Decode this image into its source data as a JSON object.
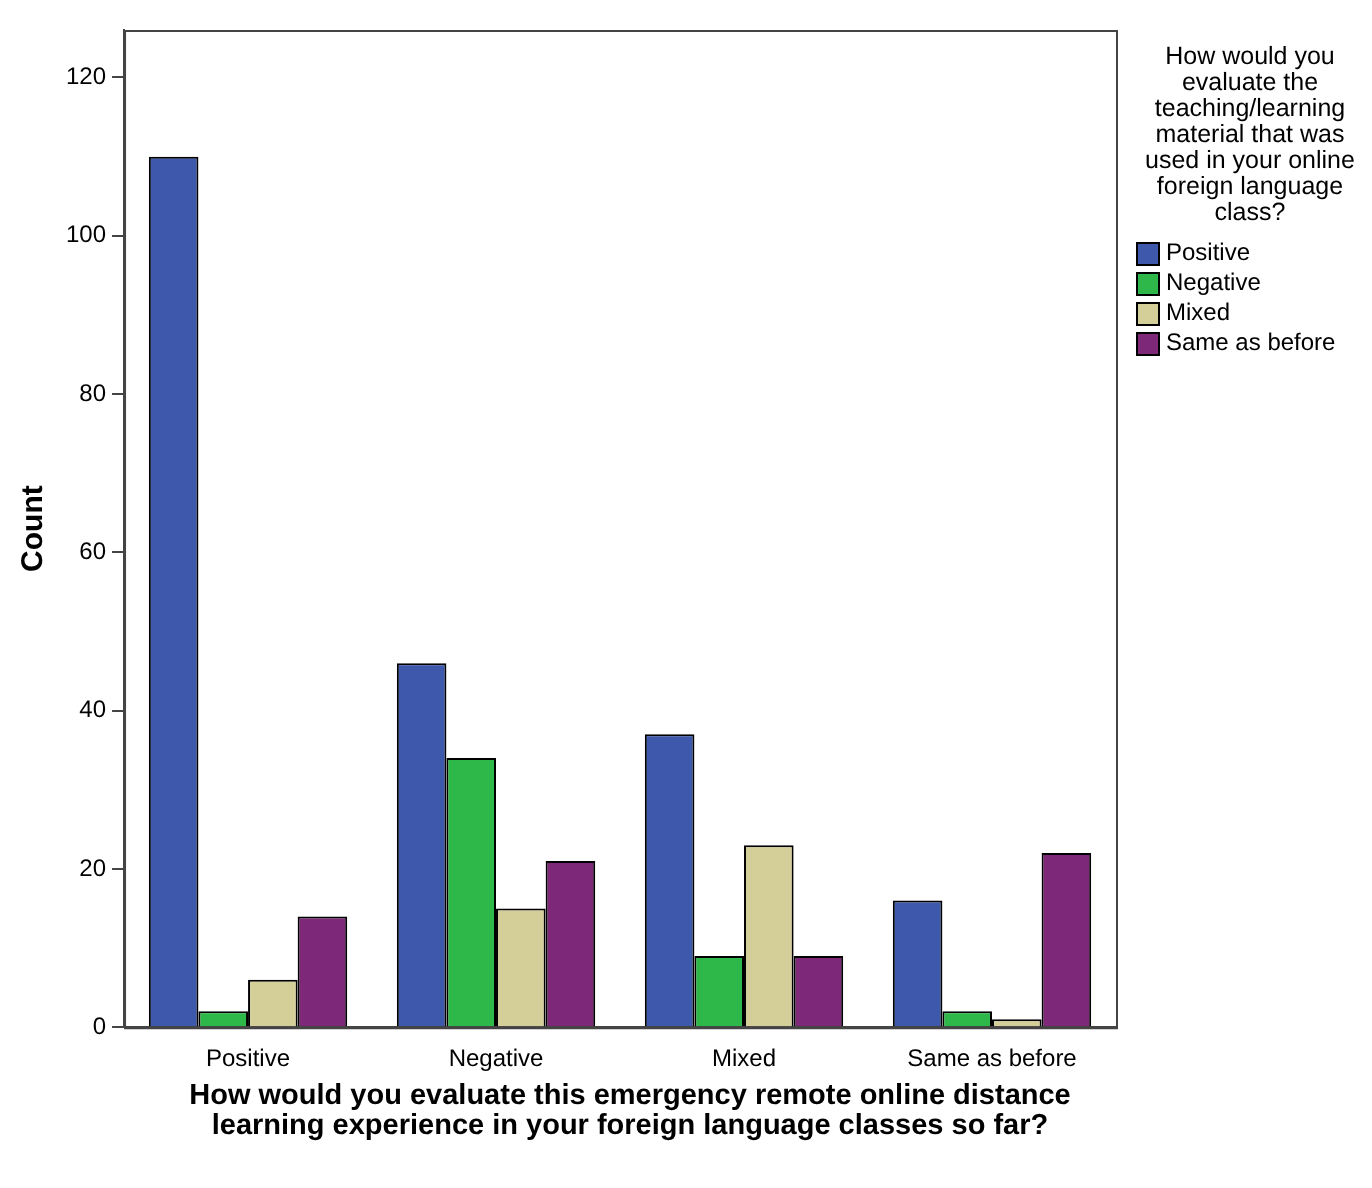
{
  "chart_data": {
    "type": "bar",
    "xlabel": "How would you evaluate this emergency remote online distance learning experience in your foreign language classes so far?",
    "ylabel": "Count",
    "legend_title": "How would you evaluate the teaching/learning material that was used in your online foreign language class?",
    "categories": [
      "Positive",
      "Negative",
      "Mixed",
      "Same as before"
    ],
    "series": [
      {
        "name": "Positive",
        "color": "#3e58ac",
        "values": [
          110,
          46,
          37,
          16
        ]
      },
      {
        "name": "Negative",
        "color": "#2fb84a",
        "values": [
          2,
          34,
          9,
          2
        ]
      },
      {
        "name": "Mixed",
        "color": "#d4ce98",
        "values": [
          6,
          15,
          23,
          1
        ]
      },
      {
        "name": "Same as before",
        "color": "#7d2878",
        "values": [
          14,
          21,
          9,
          22
        ]
      }
    ],
    "ylim": [
      0,
      126
    ],
    "yticks": [
      0,
      20,
      40,
      60,
      80,
      100,
      120
    ],
    "grid": false,
    "legend": "right"
  }
}
